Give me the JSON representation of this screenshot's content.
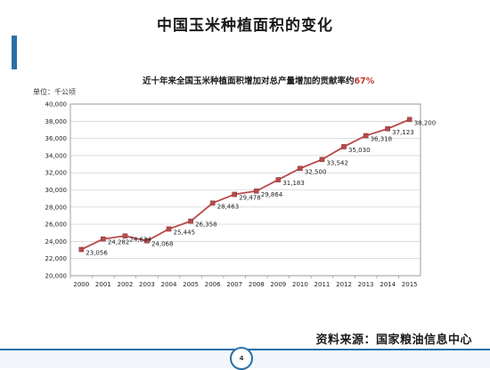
{
  "slide": {
    "title": "中国玉米种植面积的变化",
    "source_text": "资料来源：国家粮油信息中心",
    "page_number": "4",
    "accent_color": "#2a6fa8"
  },
  "chart_data": {
    "type": "line",
    "title": "近十年来全国玉米种植面积增加对总产量增加的贡献率约",
    "title_highlight": "67%",
    "unit_label": "单位：千公顷",
    "xlabel": "",
    "ylabel": "",
    "x": [
      "2000",
      "2001",
      "2002",
      "2003",
      "2004",
      "2005",
      "2006",
      "2007",
      "2008",
      "2009",
      "2010",
      "2011",
      "2012",
      "2013",
      "2014",
      "2015"
    ],
    "series": [
      {
        "color": "#b84a4a",
        "values": [
          23056,
          24282,
          24634,
          24068,
          25445,
          26358,
          28463,
          29478,
          29864,
          31183,
          32500,
          33542,
          35030,
          36318,
          37123,
          38200
        ],
        "labels": [
          "23,056",
          "24,282",
          "24,634",
          "24,068",
          "25,445",
          "26,358",
          "28,463",
          "29,478",
          "29,864",
          "31,183",
          "32,500",
          "33,542",
          "35,030",
          "36,318",
          "37,123",
          "38,200"
        ]
      }
    ],
    "ylim": [
      20000,
      40000
    ],
    "yticks": [
      20000,
      22000,
      24000,
      26000,
      28000,
      30000,
      32000,
      34000,
      36000,
      38000,
      40000
    ],
    "ytick_labels": [
      "20,000",
      "22,000",
      "24,000",
      "26,000",
      "28,000",
      "30,000",
      "32,000",
      "34,000",
      "36,000",
      "38,000",
      "40,000"
    ],
    "grid": true,
    "legend": "none"
  }
}
